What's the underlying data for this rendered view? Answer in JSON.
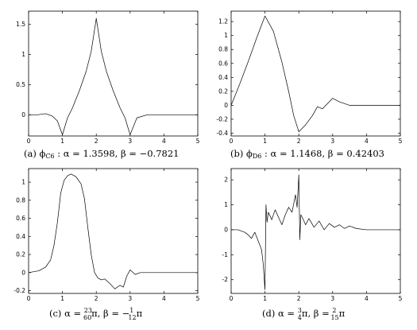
{
  "chart_data": [
    {
      "id": "a",
      "type": "line",
      "caption": "(a) ϕC6 : α = 1.3598, β = −0.7821",
      "xlim": [
        0,
        5
      ],
      "ylim": [
        -0.35,
        1.72
      ],
      "xticks": [
        0,
        1,
        2,
        3,
        4,
        5
      ],
      "yticks": [
        0,
        0.5,
        1,
        1.5
      ],
      "x": [
        0,
        0.25,
        0.5,
        0.7,
        0.85,
        1.0,
        1.15,
        1.3,
        1.5,
        1.7,
        1.85,
        2.0,
        2.15,
        2.3,
        2.5,
        2.7,
        2.85,
        3.0,
        3.2,
        3.5,
        4,
        4.5,
        5
      ],
      "y": [
        0,
        0,
        0.02,
        -0.02,
        -0.1,
        -0.33,
        -0.05,
        0.12,
        0.4,
        0.72,
        1.05,
        1.6,
        1.05,
        0.72,
        0.4,
        0.12,
        -0.05,
        -0.33,
        -0.05,
        0,
        0,
        0,
        0
      ]
    },
    {
      "id": "b",
      "type": "line",
      "caption": "(b) ϕD6 : α = 1.1468, β = 0.42403",
      "xlim": [
        0,
        5
      ],
      "ylim": [
        -0.44,
        1.35
      ],
      "xticks": [
        0,
        1,
        2,
        3,
        4,
        5
      ],
      "yticks": [
        -0.4,
        -0.2,
        0,
        0.2,
        0.4,
        0.6,
        0.8,
        1,
        1.2
      ],
      "x": [
        0,
        0.25,
        0.5,
        0.75,
        1.0,
        1.25,
        1.5,
        1.7,
        1.85,
        2.0,
        2.2,
        2.4,
        2.55,
        2.7,
        2.8,
        2.9,
        3.0,
        3.2,
        3.5,
        4,
        5
      ],
      "y": [
        0,
        0.3,
        0.62,
        0.96,
        1.28,
        1.06,
        0.62,
        0.2,
        -0.15,
        -0.38,
        -0.28,
        -0.15,
        -0.02,
        -0.05,
        0.0,
        0.05,
        0.1,
        0.05,
        0.0,
        0.0,
        0.0
      ]
    },
    {
      "id": "c",
      "type": "line",
      "caption": "(c) α = 23/60 π, β = −1/12 π",
      "xlim": [
        0,
        5
      ],
      "ylim": [
        -0.23,
        1.15
      ],
      "xticks": [
        0,
        1,
        2,
        3,
        4,
        5
      ],
      "yticks": [
        -0.2,
        0,
        0.2,
        0.4,
        0.6,
        0.8,
        1
      ],
      "x": [
        0,
        0.3,
        0.5,
        0.65,
        0.75,
        0.85,
        0.95,
        1.05,
        1.15,
        1.25,
        1.4,
        1.55,
        1.65,
        1.75,
        1.85,
        1.95,
        2.05,
        2.15,
        2.25,
        2.4,
        2.55,
        2.7,
        2.8,
        2.9,
        3.0,
        3.15,
        3.3,
        3.5,
        4,
        5
      ],
      "y": [
        0,
        0.02,
        0.06,
        0.14,
        0.3,
        0.55,
        0.88,
        1.02,
        1.07,
        1.09,
        1.06,
        0.98,
        0.82,
        0.5,
        0.2,
        0.0,
        -0.06,
        -0.08,
        -0.07,
        -0.12,
        -0.18,
        -0.14,
        -0.16,
        -0.04,
        0.03,
        -0.02,
        0.0,
        0.0,
        0.0,
        0.0
      ]
    },
    {
      "id": "d",
      "type": "line",
      "caption": "(d) α = 3/4 π, β = 2/15 π",
      "xlim": [
        0,
        5
      ],
      "ylim": [
        -2.55,
        2.45
      ],
      "xticks": [
        0,
        1,
        2,
        3,
        4,
        5
      ],
      "yticks": [
        -2,
        -1,
        0,
        1,
        2
      ],
      "x": [
        0,
        0.2,
        0.4,
        0.5,
        0.6,
        0.7,
        0.8,
        0.9,
        0.95,
        1.0,
        1.03,
        1.06,
        1.1,
        1.2,
        1.3,
        1.4,
        1.5,
        1.6,
        1.7,
        1.8,
        1.9,
        1.95,
        2.0,
        2.03,
        2.06,
        2.1,
        2.2,
        2.3,
        2.45,
        2.6,
        2.75,
        2.9,
        3.05,
        3.2,
        3.35,
        3.5,
        3.7,
        4,
        4.5,
        5
      ],
      "y": [
        0,
        0.0,
        -0.1,
        -0.2,
        -0.35,
        -0.1,
        -0.45,
        -0.8,
        -1.4,
        -2.4,
        1.0,
        0.3,
        0.7,
        0.4,
        0.8,
        0.5,
        0.2,
        0.6,
        0.9,
        0.7,
        1.4,
        0.9,
        2.2,
        -0.4,
        0.6,
        0.5,
        0.2,
        0.45,
        0.1,
        0.35,
        0.0,
        0.25,
        0.1,
        0.2,
        0.05,
        0.15,
        0.05,
        0.0,
        0.0,
        0.0
      ]
    }
  ]
}
